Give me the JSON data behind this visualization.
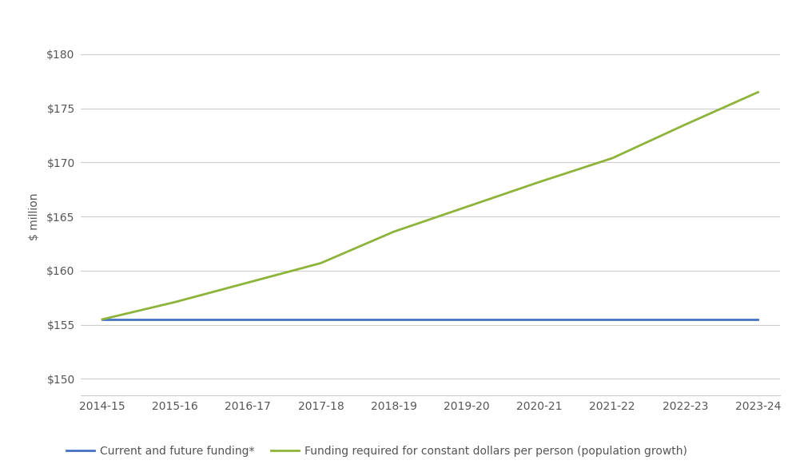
{
  "years": [
    "2014-15",
    "2015-16",
    "2016-17",
    "2017-18",
    "2018-19",
    "2019-20",
    "2020-21",
    "2021-22",
    "2022-23",
    "2023-24"
  ],
  "current_funding": [
    155.5,
    155.5,
    155.5,
    155.5,
    155.5,
    155.5,
    155.5,
    155.5,
    155.5,
    155.5
  ],
  "required_funding": [
    155.5,
    157.1,
    158.9,
    160.7,
    163.6,
    165.9,
    168.2,
    170.4,
    173.5,
    176.5
  ],
  "line1_color": "#4472C4",
  "line2_color": "#8DB33A",
  "line1_label": "Current and future funding*",
  "line2_label": "Funding required for constant dollars per person (population growth)",
  "ylabel": "$ million",
  "ylim_min": 148.5,
  "ylim_max": 181.5,
  "yticks": [
    150,
    155,
    160,
    165,
    170,
    175,
    180
  ],
  "ytick_labels": [
    "$150",
    "$155",
    "$160",
    "$165",
    "$170",
    "$175",
    "$180"
  ],
  "background_color": "#ffffff",
  "grid_color": "#cccccc",
  "line_width": 2.0,
  "legend_fontsize": 10,
  "ylabel_fontsize": 10,
  "tick_fontsize": 10
}
